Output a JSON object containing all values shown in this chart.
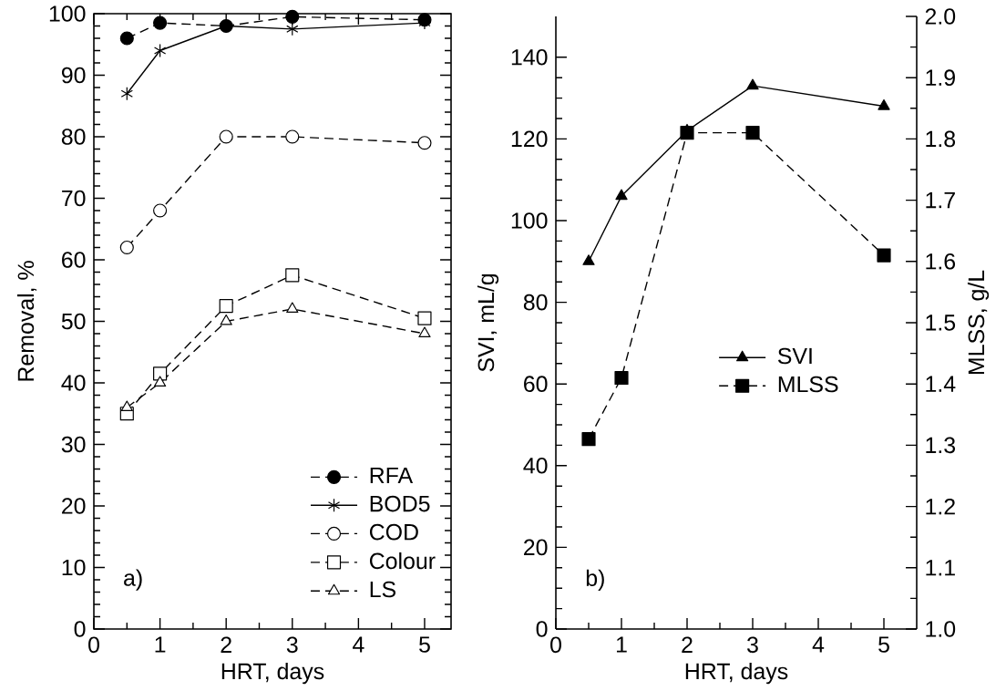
{
  "chart_data": [
    {
      "type": "line",
      "xlabel": "HRT, days",
      "ylabel": "Removal, %",
      "xlim": [
        0,
        5.4
      ],
      "ylim": [
        0,
        100
      ],
      "xticks": [
        0,
        1,
        2,
        3,
        4,
        5
      ],
      "yticks": [
        0,
        10,
        20,
        30,
        40,
        50,
        60,
        70,
        80,
        90,
        100
      ],
      "x": [
        0.5,
        1,
        2,
        3,
        5
      ],
      "legend": "bottom right",
      "annotations": [
        "a)"
      ],
      "series": [
        {
          "name": "RFA",
          "color": "#000000",
          "marker": "circle",
          "line_style": "dashed",
          "values": [
            96,
            98.5,
            98,
            99.5,
            99
          ]
        },
        {
          "name": "BOD5",
          "color": "#000000",
          "marker": "cross",
          "line_style": "solid",
          "values": [
            87,
            94,
            98,
            97.5,
            98.5
          ]
        },
        {
          "name": "COD",
          "color": "#000000",
          "marker": "circle",
          "line_style": "dashed",
          "values": [
            62,
            68,
            80,
            80,
            79
          ]
        },
        {
          "name": "Colour",
          "color": "#000000",
          "marker": "square",
          "line_style": "dashed",
          "values": [
            35,
            41.5,
            52.5,
            57.5,
            50.5
          ]
        },
        {
          "name": "LS",
          "color": "#000000",
          "marker": "triangle",
          "line_style": "dashed",
          "values": [
            36,
            40,
            50,
            52,
            48
          ]
        }
      ]
    },
    {
      "type": "line",
      "xlabel": "HRT, days",
      "ylabel": "SVI, mL/g",
      "y2label": "MLSS, g/L",
      "xlim": [
        0,
        5.5
      ],
      "ylim": [
        0,
        150
      ],
      "y2lim": [
        1.0,
        2.0
      ],
      "xticks": [
        0,
        1,
        2,
        3,
        4,
        5
      ],
      "yticks": [
        0,
        20,
        40,
        60,
        80,
        100,
        120,
        140
      ],
      "y2ticks": [
        {
          "value": 1.0,
          "label": "1.0"
        },
        {
          "value": 1.1,
          "label": "1.1"
        },
        {
          "value": 1.2,
          "label": "1.2"
        },
        {
          "value": 1.3,
          "label": "1.3"
        },
        {
          "value": 1.4,
          "label": "1.4"
        },
        {
          "value": 1.5,
          "label": "1.5"
        },
        {
          "value": 1.6,
          "label": "1.6"
        },
        {
          "value": 1.7,
          "label": "1.7"
        },
        {
          "value": 1.8,
          "label": "1.8"
        },
        {
          "value": 1.9,
          "label": "1.9"
        },
        {
          "value": 2.0,
          "label": "2.0"
        }
      ],
      "x": [
        0.5,
        1,
        2,
        3,
        5
      ],
      "legend": "center",
      "annotations": [
        "b)"
      ],
      "series": [
        {
          "name": "SVI",
          "color": "#000000",
          "marker": "triangle",
          "line_style": "solid",
          "values": [
            90,
            106,
            122,
            133,
            128
          ]
        },
        {
          "name": "MLSS",
          "color": "#000000",
          "marker": "square",
          "line_style": "dashed",
          "axis": "y2",
          "values": [
            1.31,
            1.41,
            1.81,
            1.81,
            1.61
          ]
        }
      ]
    }
  ]
}
